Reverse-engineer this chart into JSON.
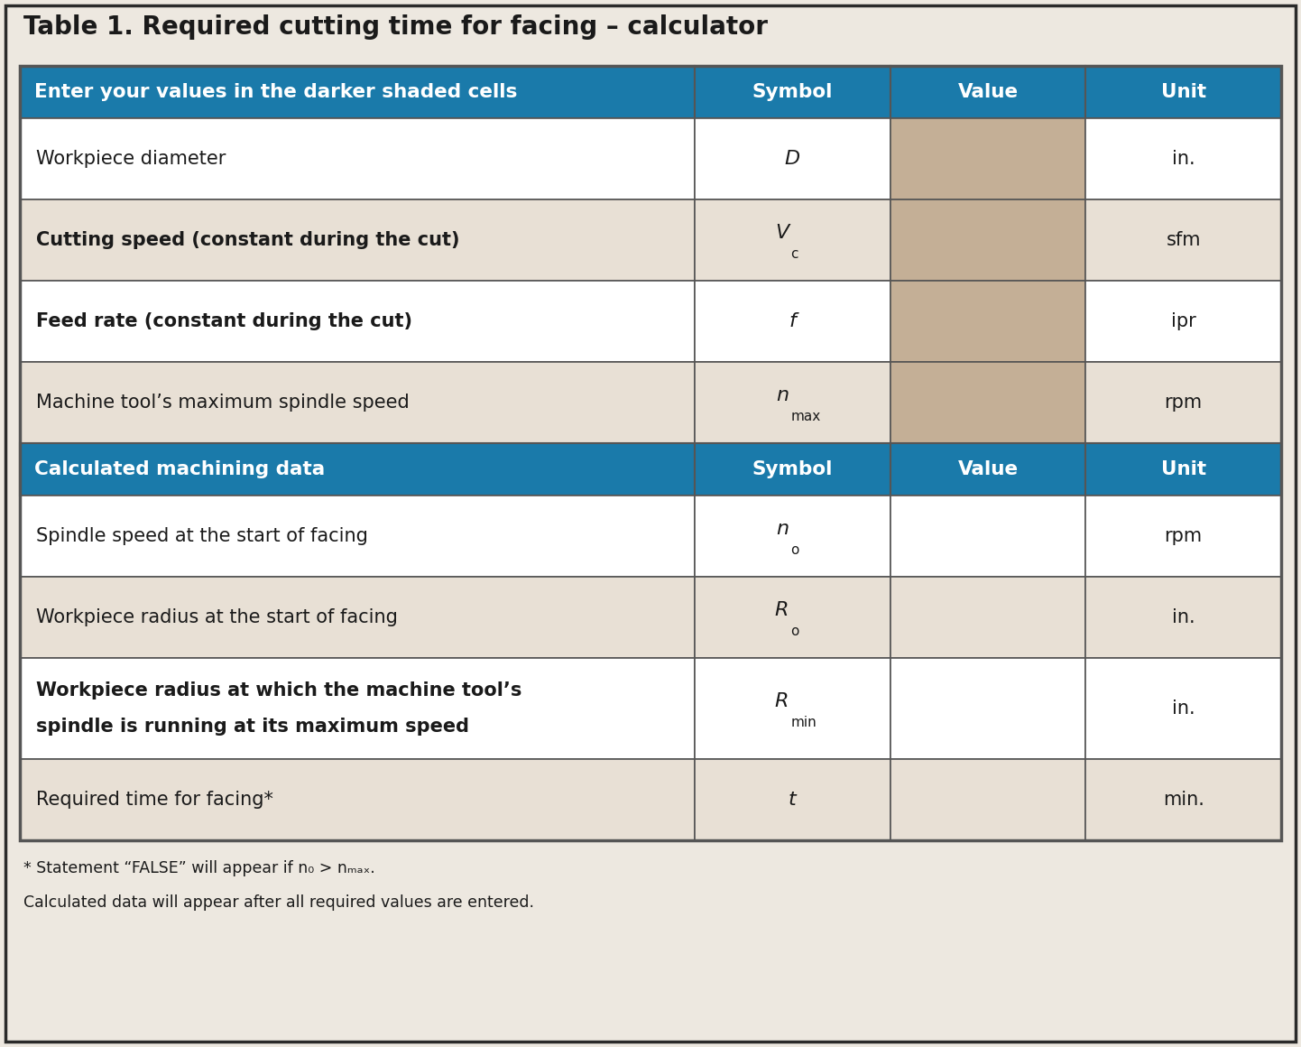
{
  "title": "Table 1. Required cutting time for facing – calculator",
  "header1_text": "Enter your values in the darker shaded cells",
  "header2_text": "Calculated machining data",
  "header_color": "#1a7aaa",
  "col_headers": [
    "Symbol",
    "Value",
    "Unit"
  ],
  "input_rows": [
    {
      "label": "Workpiece diameter",
      "symbol": "D",
      "symbol_sub": "",
      "unit": "in.",
      "bg_label": "#ffffff",
      "bg_symbol": "#ffffff",
      "bg_value": "#c4af96",
      "bg_unit": "#ffffff",
      "bold": false
    },
    {
      "label": "Cutting speed (constant during the cut)",
      "symbol": "V",
      "symbol_sub": "c",
      "unit": "sfm",
      "bg_label": "#e8e0d5",
      "bg_symbol": "#e8e0d5",
      "bg_value": "#c4af96",
      "bg_unit": "#e8e0d5",
      "bold": false
    },
    {
      "label": "Feed rate (constant during the cut)",
      "symbol": "f",
      "symbol_sub": "",
      "unit": "ipr",
      "bg_label": "#ffffff",
      "bg_symbol": "#ffffff",
      "bg_value": "#c4af96",
      "bg_unit": "#ffffff",
      "bold": false
    },
    {
      "label": "Machine tool’s maximum spindle speed",
      "symbol": "n",
      "symbol_sub": "max",
      "unit": "rpm",
      "bg_label": "#e8e0d5",
      "bg_symbol": "#e8e0d5",
      "bg_value": "#c4af96",
      "bg_unit": "#e8e0d5",
      "bold": false
    }
  ],
  "output_rows": [
    {
      "label": "Spindle speed at the start of facing",
      "symbol": "n",
      "symbol_sub": "o",
      "unit": "rpm",
      "bg_label": "#ffffff",
      "bg_symbol": "#ffffff",
      "bg_value": "#ffffff",
      "bg_unit": "#ffffff",
      "bold": false
    },
    {
      "label": "Workpiece radius at the start of facing",
      "symbol": "R",
      "symbol_sub": "o",
      "unit": "in.",
      "bg_label": "#e8e0d5",
      "bg_symbol": "#e8e0d5",
      "bg_value": "#e8e0d5",
      "bg_unit": "#e8e0d5",
      "bold": false
    },
    {
      "label": "Workpiece radius at which the machine tool’s\nspindle is running at its maximum speed",
      "symbol": "R",
      "symbol_sub": "min",
      "unit": "in.",
      "bg_label": "#ffffff",
      "bg_symbol": "#ffffff",
      "bg_value": "#ffffff",
      "bg_unit": "#ffffff",
      "bold": true
    },
    {
      "label": "Required time for facing*",
      "symbol": "t",
      "symbol_sub": "",
      "unit": "min.",
      "bg_label": "#e8e0d5",
      "bg_symbol": "#e8e0d5",
      "bg_value": "#e8e0d5",
      "bg_unit": "#e8e0d5",
      "bold": false
    }
  ],
  "footnote1": "* Statement “FALSE” will appear if n₀ > nₘₐₓ.",
  "footnote2": "Calculated data will appear after all required values are entered.",
  "outer_bg": "#ede8e0",
  "title_color": "#1a1a1a",
  "text_color": "#1a1a1a",
  "white_text": "#ffffff",
  "border_color": "#555555"
}
